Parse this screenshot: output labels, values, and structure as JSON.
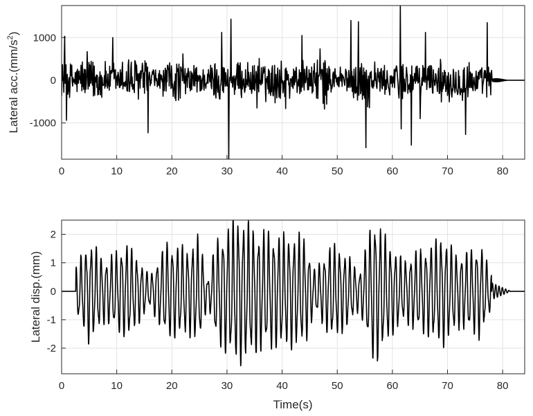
{
  "chart_data": [
    {
      "type": "line",
      "id": "acc",
      "xlabel": "",
      "ylabel": "Lateral acc.(mm/s",
      "ylabel_sup": "2",
      "ylabel_close": ")",
      "xlim": [
        0,
        84
      ],
      "ylim": [
        -1850,
        1750
      ],
      "xticks": [
        0,
        10,
        20,
        30,
        40,
        50,
        60,
        70,
        80
      ],
      "yticks": [
        -1000,
        0,
        1000
      ],
      "grid": true,
      "color": "#000000",
      "signal": {
        "start": 0,
        "end": 78,
        "base_amplitude": 420,
        "tail_end": 81,
        "tail_amplitude": 60
      },
      "peaks": [
        {
          "x": 0.6,
          "y": 1030
        },
        {
          "x": 0.9,
          "y": -940
        },
        {
          "x": 9.3,
          "y": 1000
        },
        {
          "x": 15.7,
          "y": -1230
        },
        {
          "x": 30.3,
          "y": -1850
        },
        {
          "x": 30.7,
          "y": 1430
        },
        {
          "x": 29.0,
          "y": 1120
        },
        {
          "x": 43.6,
          "y": 1050
        },
        {
          "x": 52.5,
          "y": 1400
        },
        {
          "x": 53.8,
          "y": 1370
        },
        {
          "x": 55.2,
          "y": -1580
        },
        {
          "x": 61.4,
          "y": 1750
        },
        {
          "x": 61.6,
          "y": -1140
        },
        {
          "x": 63.4,
          "y": -1520
        },
        {
          "x": 65.0,
          "y": -900
        },
        {
          "x": 66.0,
          "y": 1120
        },
        {
          "x": 73.3,
          "y": -1270
        },
        {
          "x": 77.2,
          "y": 1350
        }
      ]
    },
    {
      "type": "line",
      "id": "disp",
      "xlabel": "Time(s)",
      "ylabel": "Lateral disp.(mm)",
      "xlim": [
        0,
        84
      ],
      "ylim": [
        -2.9,
        2.5
      ],
      "xticks": [
        0,
        10,
        20,
        30,
        40,
        50,
        60,
        70,
        80
      ],
      "yticks": [
        -2,
        -1,
        0,
        1,
        2
      ],
      "grid": true,
      "color": "#000000",
      "signal": {
        "start": 2.6,
        "end": 78,
        "period": 0.92,
        "tail_end": 81.5,
        "tail_amplitude": 0.3
      },
      "envelope": [
        {
          "x": 2.6,
          "y": 0.95
        },
        {
          "x": 5.0,
          "y": 2.0
        },
        {
          "x": 8.0,
          "y": 1.2
        },
        {
          "x": 12.0,
          "y": 1.9
        },
        {
          "x": 16.0,
          "y": 0.6
        },
        {
          "x": 19.0,
          "y": 1.9
        },
        {
          "x": 23.0,
          "y": 1.7
        },
        {
          "x": 25.0,
          "y": 2.1
        },
        {
          "x": 26.5,
          "y": 0.4
        },
        {
          "x": 28.0,
          "y": 2.0
        },
        {
          "x": 32.0,
          "y": 2.9
        },
        {
          "x": 36.0,
          "y": 2.3
        },
        {
          "x": 40.0,
          "y": 2.2
        },
        {
          "x": 44.0,
          "y": 2.1
        },
        {
          "x": 46.0,
          "y": 0.8
        },
        {
          "x": 49.0,
          "y": 1.9
        },
        {
          "x": 52.0,
          "y": 1.4
        },
        {
          "x": 54.0,
          "y": 0.7
        },
        {
          "x": 56.6,
          "y": 2.9
        },
        {
          "x": 60.0,
          "y": 1.7
        },
        {
          "x": 62.0,
          "y": 1.2
        },
        {
          "x": 64.0,
          "y": 1.5
        },
        {
          "x": 66.0,
          "y": 1.7
        },
        {
          "x": 69.0,
          "y": 2.2
        },
        {
          "x": 72.0,
          "y": 1.4
        },
        {
          "x": 76.0,
          "y": 1.8
        },
        {
          "x": 78.0,
          "y": 0.7
        }
      ]
    }
  ]
}
